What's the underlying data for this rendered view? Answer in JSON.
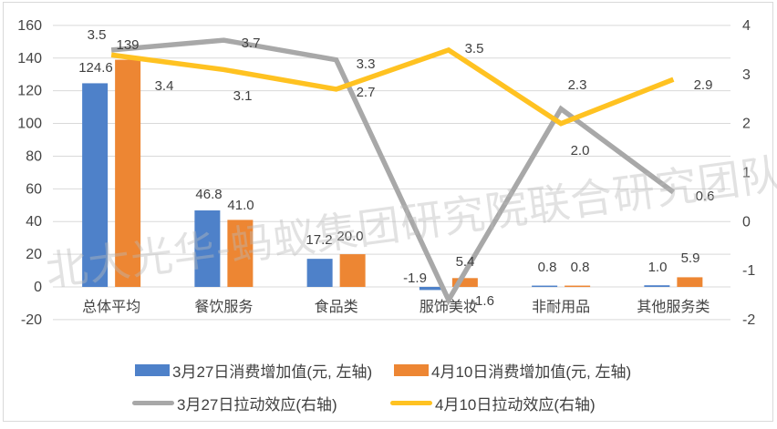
{
  "watermark": "北大光华-蚂蚁集团研究院联合研究团队",
  "chart_data": {
    "type": "combo",
    "categories": [
      "总体平均",
      "餐饮服务",
      "食品类",
      "服饰美妆",
      "非耐用品",
      "其他服务类"
    ],
    "left_axis": {
      "ticks": [
        "160",
        "140",
        "120",
        "100",
        "80",
        "60",
        "40",
        "20",
        "0",
        "-20"
      ],
      "tick_values": [
        160,
        140,
        120,
        100,
        80,
        60,
        40,
        20,
        0,
        -20
      ],
      "range": [
        -20,
        160
      ]
    },
    "right_axis": {
      "ticks": [
        "4",
        "3",
        "2",
        "1",
        "0",
        "-1",
        "-2"
      ],
      "tick_values": [
        4,
        3,
        2,
        1,
        0,
        -1,
        -2
      ],
      "range": [
        -2,
        4
      ]
    },
    "grid": true,
    "legend_position": "bottom",
    "series": [
      {
        "name": "3月27日消费增加值(元, 左轴)",
        "type": "bar",
        "axis": "left",
        "color": "#4E81C9",
        "values": [
          124.6,
          46.8,
          17.2,
          -1.9,
          0.8,
          1.0
        ],
        "labels": [
          "124.6",
          "46.8",
          "17.2",
          "-1.9",
          "0.8",
          "1.0"
        ]
      },
      {
        "name": "4月10日消费增加值(元, 左轴)",
        "type": "bar",
        "axis": "left",
        "color": "#ED8633",
        "values": [
          139,
          41.0,
          20.0,
          5.4,
          0.8,
          5.9
        ],
        "labels": [
          "139",
          "41.0",
          "20.0",
          "5.4",
          "0.8",
          "5.9"
        ]
      },
      {
        "name": "3月27日拉动效应(右轴)",
        "type": "line",
        "axis": "right",
        "color": "#A8A8A8",
        "values": [
          3.5,
          3.7,
          3.3,
          -1.6,
          2.3,
          0.6
        ],
        "labels": [
          "3.5",
          "3.7",
          "3.3",
          "-1.6",
          "2.3",
          "0.6"
        ]
      },
      {
        "name": "4月10日拉动效应(右轴)",
        "type": "line",
        "axis": "right",
        "color": "#FFC221",
        "values": [
          3.4,
          3.1,
          2.7,
          3.5,
          2.0,
          2.9
        ],
        "labels": [
          "3.4",
          "3.1",
          "2.7",
          "3.5",
          "2.0",
          "2.9"
        ]
      }
    ]
  }
}
